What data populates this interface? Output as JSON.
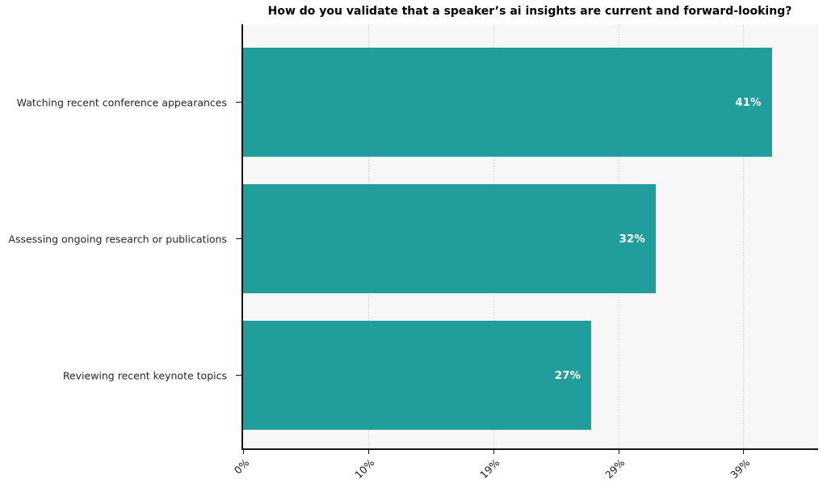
{
  "chart_data": {
    "type": "bar",
    "orientation": "horizontal",
    "title": "How do you validate that a speaker’s ai insights are current and forward-looking?",
    "categories": [
      "Watching recent conference appearances",
      "Assessing ongoing research or publications",
      "Reviewing recent keynote topics"
    ],
    "values": [
      41,
      32,
      27
    ],
    "value_labels": [
      "41%",
      "32%",
      "27%"
    ],
    "xlim": [
      0,
      44.6
    ],
    "x_ticks": [
      {
        "label": "0%",
        "value": 0
      },
      {
        "label": "10%",
        "value": 9.7
      },
      {
        "label": "19%",
        "value": 19.4
      },
      {
        "label": "29%",
        "value": 29.1
      },
      {
        "label": "39%",
        "value": 38.8
      }
    ],
    "xlabel": "",
    "ylabel": "",
    "legend": null,
    "grid": "vertical-dotted",
    "colors": {
      "bar": "#219e9b",
      "plot_background": "#f7f7f7",
      "figure_background": "#ffffff",
      "bar_value_text": "#ffffff",
      "axis_spine": "#161616",
      "gridline": "#d4d4d4",
      "tick_text": "#1a1a1a"
    }
  }
}
